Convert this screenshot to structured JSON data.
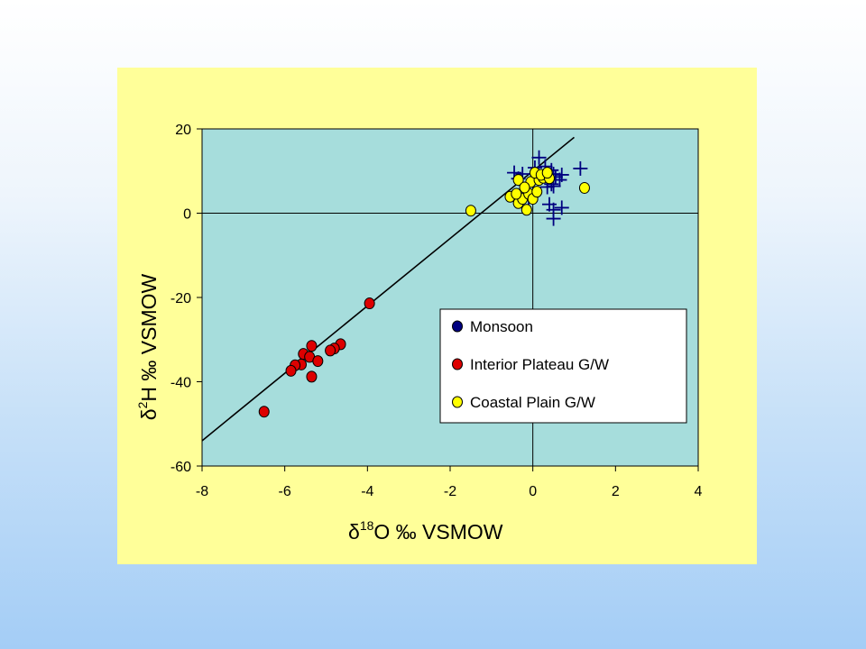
{
  "colors": {
    "panel_bg": "#ffff99",
    "plot_bg": "#a6dddc",
    "monsoon": "#000080",
    "interior": "#dd0000",
    "coastal": "#ffff00",
    "line": "#000000"
  },
  "chart_data": {
    "type": "scatter",
    "xlabel": {
      "delta": "δ",
      "sup": "18",
      "rest": "O ‰ VSMOW"
    },
    "ylabel": {
      "delta": "δ",
      "sup": "2",
      "rest": "H ‰ VSMOW"
    },
    "xlim": [
      -8,
      4
    ],
    "ylim": [
      -60,
      20
    ],
    "xticks": [
      -8,
      -6,
      -4,
      -2,
      0,
      2,
      4
    ],
    "yticks": [
      20,
      0,
      -20,
      -40,
      -60
    ],
    "grid": false,
    "reference_lines": {
      "x": 0,
      "y": 0
    },
    "legend_position": "center-right",
    "trend_line": {
      "x": [
        -8,
        1
      ],
      "y": [
        -54,
        18
      ]
    },
    "series": [
      {
        "name": "Monsoon",
        "marker": "plus",
        "color": "#000080",
        "points": [
          [
            0.15,
            13.2
          ],
          [
            1.15,
            10.6
          ],
          [
            0.3,
            11.1
          ],
          [
            0.45,
            10.2
          ],
          [
            0.7,
            9.1
          ],
          [
            0.55,
            8.6
          ],
          [
            0.65,
            7.9
          ],
          [
            0.5,
            9.3
          ],
          [
            0.45,
            6.9
          ],
          [
            0.5,
            6.4
          ],
          [
            -0.45,
            9.6
          ],
          [
            -0.35,
            8.2
          ],
          [
            -0.25,
            9.3
          ],
          [
            0.05,
            10.8
          ],
          [
            0.2,
            8.6
          ],
          [
            0.35,
            6.2
          ],
          [
            0.4,
            2.1
          ],
          [
            0.5,
            0.8
          ],
          [
            0.7,
            1.3
          ],
          [
            0.5,
            -1.3
          ],
          [
            -0.2,
            4.1
          ],
          [
            -0.1,
            3.2
          ]
        ]
      },
      {
        "name": "Interior Plateau G/W",
        "marker": "circle",
        "color": "#dd0000",
        "points": [
          [
            -3.95,
            -21.4
          ],
          [
            -5.35,
            -31.5
          ],
          [
            -4.65,
            -31.1
          ],
          [
            -4.8,
            -32.1
          ],
          [
            -4.9,
            -32.6
          ],
          [
            -5.55,
            -33.4
          ],
          [
            -5.4,
            -34.1
          ],
          [
            -5.2,
            -35.1
          ],
          [
            -5.6,
            -35.9
          ],
          [
            -5.75,
            -36.1
          ],
          [
            -5.85,
            -37.4
          ],
          [
            -5.35,
            -38.8
          ],
          [
            -6.5,
            -47.1
          ]
        ]
      },
      {
        "name": "Coastal Plain G/W",
        "marker": "circle",
        "color": "#ffff00",
        "points": [
          [
            -1.5,
            0.6
          ],
          [
            -0.15,
            0.8
          ],
          [
            -0.35,
            2.4
          ],
          [
            -0.55,
            3.9
          ],
          [
            -0.25,
            3.4
          ],
          [
            -0.1,
            4.6
          ],
          [
            0.0,
            3.4
          ],
          [
            0.1,
            5.1
          ],
          [
            -0.35,
            7.9
          ],
          [
            -0.05,
            7.4
          ],
          [
            0.15,
            7.9
          ],
          [
            0.25,
            8.4
          ],
          [
            0.05,
            9.6
          ],
          [
            0.2,
            9.1
          ],
          [
            0.4,
            8.3
          ],
          [
            0.35,
            9.6
          ],
          [
            1.25,
            6.0
          ],
          [
            -0.2,
            6.1
          ],
          [
            -0.4,
            4.6
          ]
        ]
      }
    ]
  }
}
